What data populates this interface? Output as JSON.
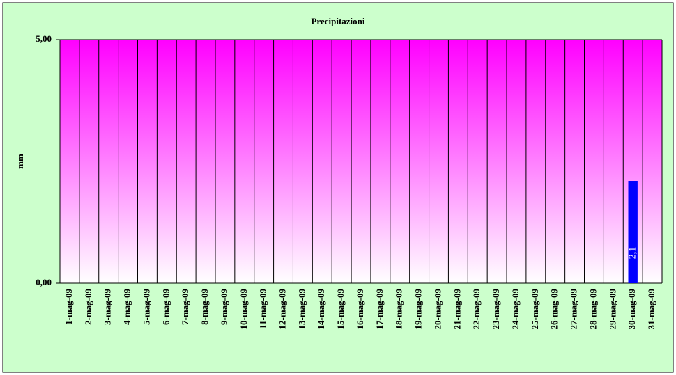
{
  "chart_data": {
    "type": "bar",
    "title": "Precipitazioni",
    "y_label": "mm",
    "categories": [
      "1-mag-09",
      "2-mag-09",
      "3-mag-09",
      "4-mag-09",
      "5-mag-09",
      "6-mag-09",
      "7-mag-09",
      "8-mag-09",
      "9-mag-09",
      "10-mag-09",
      "11-mag-09",
      "12-mag-09",
      "13-mag-09",
      "14-mag-09",
      "15-mag-09",
      "16-mag-09",
      "17-mag-09",
      "18-mag-09",
      "19-mag-09",
      "20-mag-09",
      "21-mag-09",
      "22-mag-09",
      "23-mag-09",
      "24-mag-09",
      "25-mag-09",
      "26-mag-09",
      "27-mag-09",
      "28-mag-09",
      "29-mag-09",
      "30-mag-09",
      "31-mag-09"
    ],
    "values": [
      0,
      0,
      0,
      0,
      0,
      0,
      0,
      0,
      0,
      0,
      0,
      0,
      0,
      0,
      0,
      0,
      0,
      0,
      0,
      0,
      0,
      0,
      0,
      0,
      0,
      0,
      0,
      0,
      0,
      2.1,
      0
    ],
    "value_labels": [
      null,
      null,
      null,
      null,
      null,
      null,
      null,
      null,
      null,
      null,
      null,
      null,
      null,
      null,
      null,
      null,
      null,
      null,
      null,
      null,
      null,
      null,
      null,
      null,
      null,
      null,
      null,
      null,
      null,
      "2,1",
      null
    ],
    "color": "#0000ff",
    "ylim": [
      0,
      5
    ],
    "yticks": [
      {
        "value": 0,
        "label": "0,00"
      },
      {
        "value": 5,
        "label": "5,00"
      }
    ],
    "grid": true
  }
}
